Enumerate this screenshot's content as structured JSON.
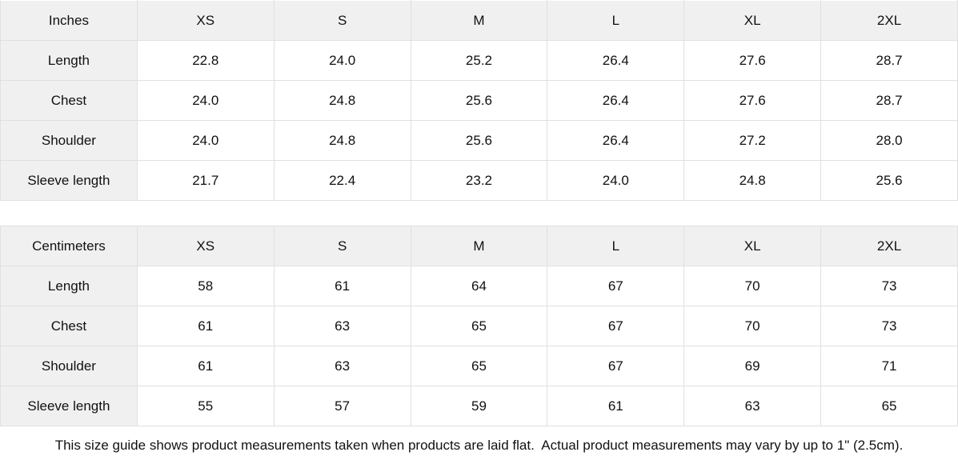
{
  "colors": {
    "header_bg": "#f0f0f0",
    "cell_bg": "#ffffff",
    "border": "#e0e0e0",
    "text": "#111111"
  },
  "tables": [
    {
      "unit_label": "Inches",
      "sizes": [
        "XS",
        "S",
        "M",
        "L",
        "XL",
        "2XL"
      ],
      "rows": [
        {
          "label": "Length",
          "values": [
            "22.8",
            "24.0",
            "25.2",
            "26.4",
            "27.6",
            "28.7"
          ]
        },
        {
          "label": "Chest",
          "values": [
            "24.0",
            "24.8",
            "25.6",
            "26.4",
            "27.6",
            "28.7"
          ]
        },
        {
          "label": "Shoulder",
          "values": [
            "24.0",
            "24.8",
            "25.6",
            "26.4",
            "27.2",
            "28.0"
          ]
        },
        {
          "label": "Sleeve length",
          "values": [
            "21.7",
            "22.4",
            "23.2",
            "24.0",
            "24.8",
            "25.6"
          ]
        }
      ]
    },
    {
      "unit_label": "Centimeters",
      "sizes": [
        "XS",
        "S",
        "M",
        "L",
        "XL",
        "2XL"
      ],
      "rows": [
        {
          "label": "Length",
          "values": [
            "58",
            "61",
            "64",
            "67",
            "70",
            "73"
          ]
        },
        {
          "label": "Chest",
          "values": [
            "61",
            "63",
            "65",
            "67",
            "70",
            "73"
          ]
        },
        {
          "label": "Shoulder",
          "values": [
            "61",
            "63",
            "65",
            "67",
            "69",
            "71"
          ]
        },
        {
          "label": "Sleeve length",
          "values": [
            "55",
            "57",
            "59",
            "61",
            "63",
            "65"
          ]
        }
      ]
    }
  ],
  "footer": {
    "note": "This size guide shows product measurements taken when products are laid flat.  Actual product measurements may vary by up to 1\" (2.5cm)."
  }
}
